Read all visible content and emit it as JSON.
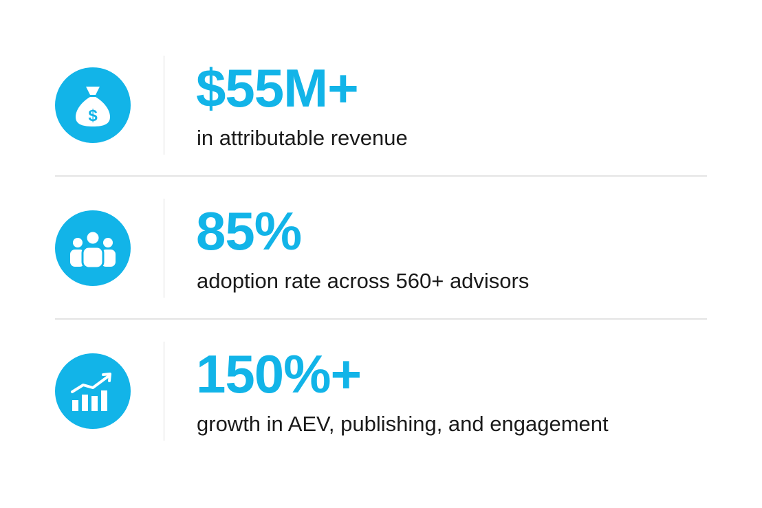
{
  "stats": [
    {
      "value": "$55M+",
      "description": "in attributable revenue",
      "icon": "money-bag-icon"
    },
    {
      "value": "85%",
      "description": "adoption rate across 560+ advisors",
      "icon": "people-group-icon"
    },
    {
      "value": "150%+",
      "description": "growth in AEV, publishing, and engagement",
      "icon": "growth-chart-icon"
    }
  ],
  "colors": {
    "accent": "#12b4e8",
    "text": "#1a1a1a",
    "divider": "#e4e4e4",
    "background": "#ffffff"
  }
}
